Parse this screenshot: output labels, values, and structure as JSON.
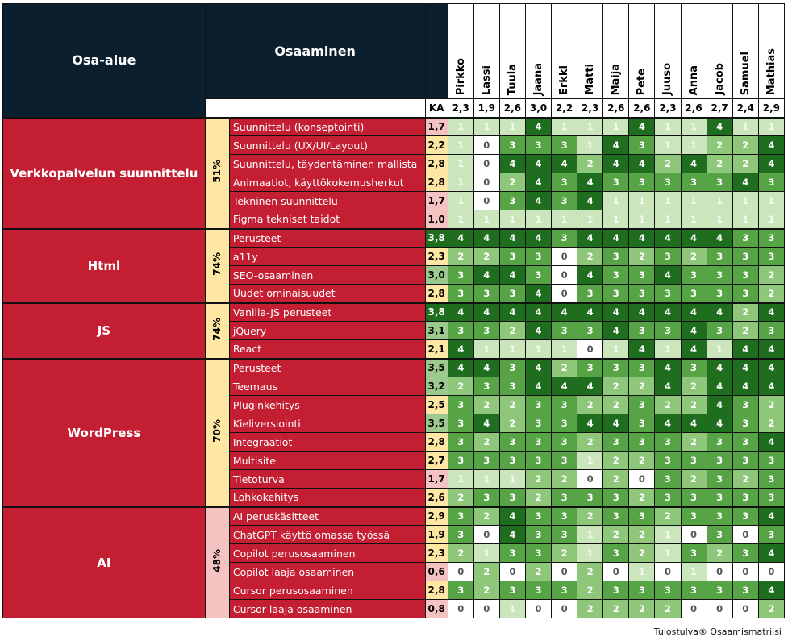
{
  "header": {
    "area_label": "Osa-alue",
    "skill_label": "Osaaminen",
    "avg_label": "KA"
  },
  "people": [
    {
      "name": "Pirkko",
      "avg": "2,3"
    },
    {
      "name": "Lassi",
      "avg": "1,9"
    },
    {
      "name": "Tuula",
      "avg": "2,6"
    },
    {
      "name": "Jaana",
      "avg": "3,0"
    },
    {
      "name": "Erkki",
      "avg": "2,2"
    },
    {
      "name": "Matti",
      "avg": "2,3"
    },
    {
      "name": "Maija",
      "avg": "2,6"
    },
    {
      "name": "Pete",
      "avg": "2,6"
    },
    {
      "name": "Juuso",
      "avg": "2,3"
    },
    {
      "name": "Anna",
      "avg": "2,6"
    },
    {
      "name": "Jacob",
      "avg": "2,7"
    },
    {
      "name": "Samuel",
      "avg": "2,4"
    },
    {
      "name": "Mathias",
      "avg": "2,9"
    }
  ],
  "colors": {
    "0": "#ffffff",
    "1": "#cbe5bc",
    "2": "#8fc77a",
    "3": "#56a445",
    "4": "#1f6e1f",
    "ka_low": "#f5c2c2",
    "ka_mid": "#fde7a2",
    "ka_high": "#9cc98d",
    "ka_top": "#1f6e1f"
  },
  "areas": [
    {
      "name": "Verkkopalvelun suunnittelu",
      "percent": "51%",
      "percent_color": "#fde7a2",
      "skills": [
        {
          "name": "Suunnittelu (konseptointi)",
          "avg": "1,7",
          "scores": [
            1,
            1,
            1,
            4,
            1,
            1,
            1,
            4,
            1,
            1,
            4,
            1,
            1
          ]
        },
        {
          "name": "Suunnittelu (UX/UI/Layout)",
          "avg": "2,2",
          "scores": [
            1,
            0,
            3,
            3,
            3,
            1,
            4,
            3,
            1,
            1,
            2,
            2,
            4
          ]
        },
        {
          "name": "Suunnittelu, täydentäminen mallista",
          "avg": "2,8",
          "scores": [
            1,
            0,
            4,
            4,
            4,
            2,
            4,
            4,
            2,
            4,
            2,
            2,
            4
          ]
        },
        {
          "name": "Animaatiot, käyttökokemusherkut",
          "avg": "2,8",
          "scores": [
            1,
            0,
            2,
            4,
            3,
            4,
            3,
            3,
            3,
            3,
            3,
            4,
            3
          ]
        },
        {
          "name": "Tekninen suunnittelu",
          "avg": "1,7",
          "scores": [
            1,
            0,
            3,
            4,
            3,
            4,
            1,
            1,
            1,
            1,
            1,
            1,
            1
          ]
        },
        {
          "name": "Figma tekniset taidot",
          "avg": "1,0",
          "scores": [
            1,
            1,
            1,
            1,
            1,
            1,
            1,
            1,
            1,
            1,
            1,
            1,
            1
          ]
        }
      ]
    },
    {
      "name": "Html",
      "percent": "74%",
      "percent_color": "#fde7a2",
      "skills": [
        {
          "name": "Perusteet",
          "avg": "3,8",
          "scores": [
            4,
            4,
            4,
            4,
            3,
            4,
            4,
            4,
            4,
            4,
            4,
            3,
            3
          ]
        },
        {
          "name": "a11y",
          "avg": "2,3",
          "scores": [
            2,
            2,
            3,
            3,
            0,
            2,
            3,
            2,
            3,
            2,
            3,
            3,
            3
          ]
        },
        {
          "name": "SEO-osaaminen",
          "avg": "3,0",
          "scores": [
            3,
            4,
            4,
            3,
            0,
            4,
            3,
            3,
            4,
            3,
            3,
            3,
            2
          ]
        },
        {
          "name": "Uudet ominaisuudet",
          "avg": "2,8",
          "scores": [
            3,
            3,
            3,
            4,
            0,
            3,
            3,
            3,
            3,
            3,
            3,
            3,
            2
          ]
        }
      ]
    },
    {
      "name": "JS",
      "percent": "74%",
      "percent_color": "#fde7a2",
      "skills": [
        {
          "name": "Vanilla-JS perusteet",
          "avg": "3,8",
          "scores": [
            4,
            4,
            4,
            4,
            4,
            4,
            4,
            4,
            4,
            4,
            4,
            2,
            4
          ]
        },
        {
          "name": "jQuery",
          "avg": "3,1",
          "scores": [
            3,
            3,
            2,
            4,
            3,
            3,
            4,
            3,
            3,
            4,
            3,
            2,
            3
          ]
        },
        {
          "name": "React",
          "avg": "2,1",
          "scores": [
            4,
            1,
            1,
            1,
            1,
            0,
            1,
            4,
            1,
            4,
            1,
            4,
            4
          ]
        }
      ]
    },
    {
      "name": "WordPress",
      "percent": "70%",
      "percent_color": "#fde7a2",
      "skills": [
        {
          "name": "Perusteet",
          "avg": "3,5",
          "scores": [
            4,
            4,
            3,
            4,
            2,
            3,
            3,
            3,
            4,
            3,
            4,
            4,
            4
          ]
        },
        {
          "name": "Teemaus",
          "avg": "3,2",
          "scores": [
            2,
            3,
            3,
            4,
            4,
            4,
            2,
            2,
            4,
            2,
            4,
            4,
            4
          ]
        },
        {
          "name": "Pluginkehitys",
          "avg": "2,5",
          "scores": [
            3,
            2,
            2,
            3,
            3,
            2,
            2,
            3,
            2,
            2,
            4,
            3,
            2
          ]
        },
        {
          "name": "Kieliversiointi",
          "avg": "3,5",
          "scores": [
            3,
            4,
            2,
            3,
            3,
            4,
            4,
            3,
            4,
            4,
            4,
            3,
            2
          ]
        },
        {
          "name": "Integraatiot",
          "avg": "2,8",
          "scores": [
            3,
            2,
            3,
            3,
            3,
            2,
            3,
            3,
            3,
            2,
            3,
            3,
            4
          ]
        },
        {
          "name": "Multisite",
          "avg": "2,7",
          "scores": [
            3,
            3,
            3,
            3,
            3,
            1,
            2,
            2,
            3,
            3,
            3,
            3,
            3
          ]
        },
        {
          "name": "Tietoturva",
          "avg": "1,7",
          "scores": [
            1,
            1,
            1,
            2,
            2,
            0,
            2,
            0,
            3,
            2,
            3,
            2,
            3
          ]
        },
        {
          "name": "Lohkokehitys",
          "avg": "2,6",
          "scores": [
            2,
            3,
            3,
            2,
            3,
            3,
            3,
            2,
            3,
            3,
            3,
            3,
            3
          ]
        }
      ]
    },
    {
      "name": "AI",
      "percent": "48%",
      "percent_color": "#f5c2c2",
      "skills": [
        {
          "name": "AI peruskäsitteet",
          "avg": "2,9",
          "scores": [
            3,
            2,
            4,
            3,
            3,
            2,
            3,
            3,
            2,
            3,
            3,
            3,
            4
          ]
        },
        {
          "name": "ChatGPT käyttö omassa työssä",
          "avg": "1,9",
          "scores": [
            3,
            0,
            4,
            3,
            3,
            1,
            2,
            2,
            1,
            0,
            3,
            0,
            3
          ]
        },
        {
          "name": "Copilot perusosaaminen",
          "avg": "2,3",
          "scores": [
            2,
            1,
            3,
            3,
            2,
            1,
            3,
            2,
            1,
            3,
            2,
            3,
            4
          ]
        },
        {
          "name": "Copilot laaja osaaminen",
          "avg": "0,6",
          "scores": [
            0,
            2,
            0,
            2,
            0,
            2,
            0,
            1,
            0,
            1,
            0,
            0,
            0
          ]
        },
        {
          "name": "Cursor perusosaaminen",
          "avg": "2,8",
          "scores": [
            3,
            2,
            3,
            3,
            3,
            2,
            3,
            3,
            3,
            3,
            3,
            3,
            4
          ]
        },
        {
          "name": "Cursor laaja osaaminen",
          "avg": "0,8",
          "scores": [
            0,
            0,
            1,
            0,
            0,
            2,
            2,
            2,
            2,
            0,
            0,
            0,
            2
          ]
        }
      ]
    }
  ],
  "footer": "Tulostulva® Osaamismatriisi"
}
